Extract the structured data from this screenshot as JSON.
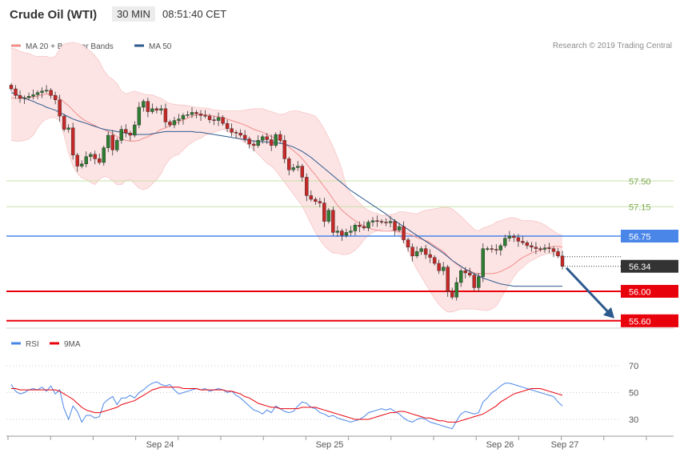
{
  "header": {
    "title": "Crude Oil (WTI)",
    "timeframe": "30 MIN",
    "time": "08:51:40 CET"
  },
  "legend": [
    {
      "label": "MA 20 + Bollinger Bands",
      "color": "#f08c8c"
    },
    {
      "label": "MA 50",
      "color": "#2e5a8e"
    }
  ],
  "copyright": "Research © 2019 Trading Central",
  "chart_data": [
    {
      "type": "candlestick",
      "levels": [
        {
          "value": 57.5,
          "label": "57.50",
          "color": "#c5e0a5",
          "kind": "resistance"
        },
        {
          "value": 57.15,
          "label": "57.15",
          "color": "#c5e0a5",
          "kind": "resistance"
        },
        {
          "value": 56.75,
          "label": "56.75",
          "color": "#4a86e8",
          "kind": "pivot"
        },
        {
          "value": 56.0,
          "label": "56.00",
          "color": "#e8000b",
          "kind": "support"
        },
        {
          "value": 55.6,
          "label": "55.60",
          "color": "#e8000b",
          "kind": "support"
        }
      ],
      "last_price": {
        "value": 56.34,
        "label": "56.34"
      },
      "forecast": {
        "from": 56.34,
        "to": 55.6,
        "direction": "down"
      },
      "x_labels": [
        "Sep 24",
        "Sep 25",
        "Sep 26",
        "Sep 27"
      ],
      "ohlc_close": [
        58.75,
        58.66,
        58.62,
        58.63,
        58.65,
        58.67,
        58.7,
        58.72,
        58.73,
        58.66,
        58.6,
        58.38,
        58.2,
        58.22,
        57.85,
        57.7,
        57.73,
        57.83,
        57.86,
        57.8,
        57.75,
        57.95,
        58.12,
        57.92,
        58.05,
        58.2,
        58.15,
        58.12,
        58.26,
        58.5,
        58.58,
        58.44,
        58.48,
        58.46,
        58.48,
        58.3,
        58.26,
        58.32,
        58.34,
        58.39,
        58.4,
        58.43,
        58.41,
        58.39,
        58.38,
        58.33,
        58.32,
        58.36,
        58.28,
        58.21,
        58.16,
        58.15,
        58.12,
        58.07,
        58.0,
        57.98,
        58.05,
        58.1,
        58.06,
        57.98,
        58.13,
        58.05,
        57.8,
        57.65,
        57.68,
        57.7,
        57.55,
        57.3,
        57.25,
        57.22,
        57.2,
        56.95,
        57.1,
        56.8,
        56.82,
        56.76,
        56.8,
        56.82,
        56.9,
        56.88,
        56.86,
        56.94,
        56.96,
        56.95,
        56.94,
        56.93,
        56.95,
        56.83,
        56.88,
        56.7,
        56.6,
        56.48,
        56.54,
        56.58,
        56.5,
        56.46,
        56.38,
        56.28,
        56.33,
        56.0,
        55.92,
        56.12,
        56.28,
        56.25,
        56.22,
        56.05,
        56.2,
        56.58,
        56.58,
        56.57,
        56.56,
        56.62,
        56.72,
        56.75,
        56.73,
        56.68,
        56.66,
        56.62,
        56.6,
        56.58,
        56.57,
        56.59,
        56.58,
        56.54,
        56.48,
        56.34
      ],
      "bb_upper": [
        59.3,
        59.29,
        59.26,
        59.24,
        59.23,
        59.2,
        59.19,
        59.19,
        59.19,
        59.17,
        59.19,
        59.29,
        59.36,
        59.37,
        59.38,
        59.37,
        59.35,
        59.3,
        59.26,
        59.2,
        59.12,
        59.0,
        58.92,
        58.88,
        58.82,
        58.72,
        58.68,
        58.7,
        58.72,
        58.7,
        58.68,
        58.67,
        58.67,
        58.64,
        58.62,
        58.58,
        58.55,
        58.54,
        58.53,
        58.53,
        58.52,
        58.51,
        58.5,
        58.49,
        58.49,
        58.48,
        58.46,
        58.46,
        58.45,
        58.45,
        58.45,
        58.45,
        58.45,
        58.46,
        58.47,
        58.48,
        58.48,
        58.48,
        58.46,
        58.44,
        58.42,
        58.4,
        58.41,
        58.44,
        58.45,
        58.45,
        58.43,
        58.42,
        58.4,
        58.38,
        58.3,
        58.2,
        58.08,
        57.96,
        57.82,
        57.65,
        57.42,
        57.32,
        57.26,
        57.2,
        57.14,
        57.1,
        57.07,
        57.06,
        57.03,
        57.03,
        57.04,
        57.05,
        57.08,
        57.08,
        57.07,
        57.06,
        57.05,
        57.08,
        57.1,
        57.11,
        57.12,
        57.13,
        57.14,
        57.14,
        57.12,
        57.07,
        57.02,
        56.96,
        56.9,
        56.84,
        56.82,
        56.86,
        56.88,
        56.9,
        56.94,
        56.96,
        56.98,
        57.0,
        57.0,
        56.98,
        56.96,
        56.96,
        56.96,
        56.95,
        56.93,
        56.9,
        56.86,
        56.82,
        56.78,
        56.76
      ],
      "ma20": [
        58.63,
        58.62,
        58.62,
        58.62,
        58.63,
        58.64,
        58.65,
        58.67,
        58.68,
        58.67,
        58.66,
        58.62,
        58.57,
        58.52,
        58.46,
        58.4,
        58.35,
        58.31,
        58.28,
        58.25,
        58.22,
        58.2,
        58.17,
        58.14,
        58.1,
        58.07,
        58.05,
        58.04,
        58.04,
        58.05,
        58.08,
        58.1,
        58.13,
        58.16,
        58.2,
        58.22,
        58.25,
        58.28,
        58.3,
        58.33,
        58.35,
        58.38,
        58.39,
        58.4,
        58.4,
        58.39,
        58.38,
        58.37,
        58.36,
        58.34,
        58.32,
        58.3,
        58.28,
        58.26,
        58.23,
        58.2,
        58.18,
        58.16,
        58.13,
        58.1,
        58.08,
        58.05,
        58.01,
        57.96,
        57.91,
        57.86,
        57.8,
        57.73,
        57.65,
        57.58,
        57.5,
        57.42,
        57.34,
        57.25,
        57.17,
        57.1,
        57.05,
        57.0,
        56.96,
        56.92,
        56.89,
        56.86,
        56.84,
        56.83,
        56.82,
        56.82,
        56.82,
        56.82,
        56.81,
        56.8,
        56.78,
        56.76,
        56.73,
        56.71,
        56.69,
        56.66,
        56.62,
        56.58,
        56.54,
        56.48,
        56.42,
        56.37,
        56.33,
        56.3,
        56.28,
        56.25,
        56.24,
        56.24,
        56.24,
        56.24,
        56.25,
        56.27,
        56.3,
        56.33,
        56.37,
        56.42,
        56.46,
        56.49,
        56.52,
        56.54,
        56.56,
        56.58,
        56.6,
        56.61,
        56.61,
        56.6
      ],
      "bb_lower": [
        58.05,
        58.04,
        58.04,
        58.05,
        58.07,
        58.12,
        58.22,
        58.3,
        58.34,
        58.36,
        58.36,
        58.32,
        58.12,
        57.88,
        57.7,
        57.6,
        57.54,
        57.52,
        57.48,
        57.45,
        57.52,
        57.56,
        57.55,
        57.5,
        57.45,
        57.45,
        57.5,
        57.52,
        57.46,
        57.4,
        57.38,
        57.4,
        57.46,
        57.52,
        57.6,
        57.72,
        57.8,
        57.84,
        57.86,
        57.92,
        57.98,
        58.02,
        58.06,
        58.08,
        58.12,
        58.14,
        58.16,
        58.18,
        58.2,
        58.18,
        58.14,
        58.1,
        58.06,
        58.02,
        57.98,
        57.92,
        57.86,
        57.8,
        57.74,
        57.7,
        57.64,
        57.56,
        57.48,
        57.4,
        57.32,
        57.24,
        57.16,
        57.04,
        56.92,
        56.8,
        56.7,
        56.62,
        56.56,
        56.52,
        56.52,
        56.5,
        56.5,
        56.52,
        56.56,
        56.62,
        56.7,
        56.76,
        56.8,
        56.82,
        56.84,
        56.85,
        56.84,
        56.82,
        56.76,
        56.66,
        56.56,
        56.42,
        56.3,
        56.2,
        56.1,
        56.0,
        55.9,
        55.82,
        55.76,
        55.72,
        55.72,
        55.74,
        55.76,
        55.76,
        55.76,
        55.76,
        55.75,
        55.74,
        55.74,
        55.76,
        55.8,
        55.9,
        56.0,
        56.1,
        56.2,
        56.28,
        56.32,
        56.38,
        56.42,
        56.45,
        56.48,
        56.5,
        56.52,
        56.5,
        56.48,
        56.46
      ],
      "ma50": [
        58.7,
        58.68,
        58.65,
        58.62,
        58.6,
        58.58,
        58.55,
        58.53,
        58.5,
        58.48,
        58.46,
        58.43,
        58.4,
        58.37,
        58.34,
        58.32,
        58.3,
        58.28,
        58.26,
        58.24,
        58.22,
        58.2,
        58.19,
        58.18,
        58.17,
        58.16,
        58.15,
        58.14,
        58.13,
        58.13,
        58.13,
        58.13,
        58.14,
        58.15,
        58.16,
        58.17,
        58.17,
        58.17,
        58.17,
        58.17,
        58.17,
        58.17,
        58.16,
        58.16,
        58.15,
        58.14,
        58.13,
        58.12,
        58.11,
        58.1,
        58.09,
        58.08,
        58.07,
        58.06,
        58.05,
        58.04,
        58.04,
        58.03,
        58.03,
        58.02,
        58.02,
        58.01,
        58.0,
        57.98,
        57.96,
        57.93,
        57.9,
        57.86,
        57.82,
        57.77,
        57.72,
        57.67,
        57.62,
        57.57,
        57.52,
        57.47,
        57.42,
        57.37,
        57.33,
        57.29,
        57.25,
        57.21,
        57.17,
        57.13,
        57.09,
        57.05,
        57.0,
        56.96,
        56.92,
        56.88,
        56.84,
        56.8,
        56.76,
        56.72,
        56.68,
        56.64,
        56.6,
        56.56,
        56.52,
        56.47,
        56.42,
        56.38,
        56.34,
        56.3,
        56.27,
        56.24,
        56.21,
        56.18,
        56.16,
        56.14,
        56.12,
        56.1,
        56.09,
        56.08,
        56.07,
        56.07,
        56.07,
        56.07,
        56.07,
        56.07,
        56.07,
        56.07,
        56.07,
        56.07,
        56.07,
        56.07
      ]
    },
    {
      "type": "line",
      "legend": [
        {
          "label": "RSI",
          "color": "#4a86e8"
        },
        {
          "label": "9MA",
          "color": "#e8000b"
        }
      ],
      "y_ticks": [
        70,
        50,
        30
      ],
      "ylim": [
        18,
        78
      ],
      "rsi": [
        56,
        51,
        49,
        50,
        52,
        53,
        52,
        54,
        51,
        55,
        49,
        52,
        38,
        30,
        40,
        36,
        28,
        33,
        33,
        31,
        32,
        42,
        45,
        47,
        41,
        46,
        46,
        48,
        46,
        50,
        52,
        55,
        57,
        58,
        56,
        55,
        56,
        52,
        49,
        50,
        51,
        52,
        53,
        52,
        53,
        51,
        52,
        53,
        52,
        50,
        51,
        48,
        46,
        43,
        40,
        37,
        36,
        34,
        37,
        35,
        40,
        38,
        36,
        35,
        36,
        40,
        43,
        42,
        39,
        38,
        35,
        34,
        32,
        33,
        31,
        30,
        29,
        28,
        29,
        30,
        32,
        35,
        36,
        37,
        38,
        37,
        38,
        36,
        34,
        31,
        29,
        28,
        30,
        31,
        30,
        28,
        27,
        26,
        25,
        24,
        23,
        29,
        34,
        36,
        35,
        34,
        35,
        43,
        46,
        50,
        52,
        55,
        57,
        57,
        56,
        55,
        54,
        53,
        52,
        51,
        50,
        49,
        48,
        47,
        43,
        40
      ],
      "ma9": [
        53,
        53,
        52,
        52,
        52,
        52,
        52,
        52,
        52,
        52,
        52,
        51,
        49,
        47,
        45,
        42,
        39,
        37,
        36,
        35,
        35,
        36,
        37,
        38,
        39,
        41,
        42,
        43,
        44,
        46,
        48,
        50,
        52,
        53,
        54,
        54,
        54,
        54,
        54,
        53,
        53,
        53,
        53,
        52,
        52,
        52,
        52,
        52,
        52,
        51,
        51,
        50,
        49,
        47,
        46,
        44,
        42,
        41,
        40,
        39,
        39,
        38,
        38,
        38,
        38,
        38,
        39,
        39,
        39,
        39,
        38,
        37,
        36,
        35,
        34,
        33,
        32,
        31,
        30,
        30,
        30,
        30,
        31,
        32,
        33,
        34,
        35,
        35,
        36,
        36,
        35,
        34,
        33,
        32,
        31,
        31,
        30,
        29,
        29,
        28,
        28,
        28,
        29,
        30,
        31,
        32,
        33,
        34,
        36,
        38,
        40,
        43,
        45,
        47,
        49,
        50,
        51,
        52,
        53,
        53,
        53,
        52,
        51,
        50,
        49,
        48
      ]
    }
  ]
}
